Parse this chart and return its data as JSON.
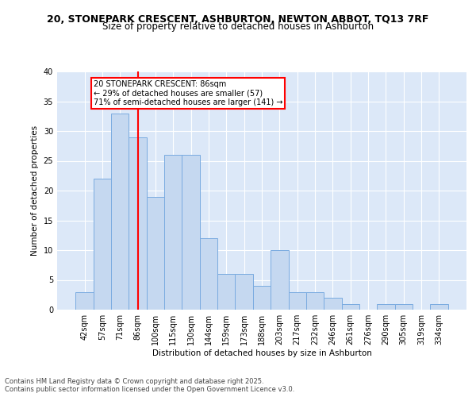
{
  "title_line1": "20, STONEPARK CRESCENT, ASHBURTON, NEWTON ABBOT, TQ13 7RF",
  "title_line2": "Size of property relative to detached houses in Ashburton",
  "xlabel": "Distribution of detached houses by size in Ashburton",
  "ylabel": "Number of detached properties",
  "categories": [
    "42sqm",
    "57sqm",
    "71sqm",
    "86sqm",
    "100sqm",
    "115sqm",
    "130sqm",
    "144sqm",
    "159sqm",
    "173sqm",
    "188sqm",
    "203sqm",
    "217sqm",
    "232sqm",
    "246sqm",
    "261sqm",
    "276sqm",
    "290sqm",
    "305sqm",
    "319sqm",
    "334sqm"
  ],
  "values": [
    3,
    22,
    33,
    29,
    19,
    26,
    26,
    12,
    6,
    6,
    4,
    10,
    3,
    3,
    2,
    1,
    0,
    1,
    1,
    0,
    1
  ],
  "bar_color": "#c5d8f0",
  "bar_edge_color": "#7aabe0",
  "red_line_x": 3,
  "annotation_text": "20 STONEPARK CRESCENT: 86sqm\n← 29% of detached houses are smaller (57)\n71% of semi-detached houses are larger (141) →",
  "annotation_box_color": "white",
  "annotation_box_edge": "red",
  "ylim": [
    0,
    40
  ],
  "yticks": [
    0,
    5,
    10,
    15,
    20,
    25,
    30,
    35,
    40
  ],
  "background_color": "#dce8f8",
  "grid_color": "white",
  "footer_line1": "Contains HM Land Registry data © Crown copyright and database right 2025.",
  "footer_line2": "Contains public sector information licensed under the Open Government Licence v3.0.",
  "title_fontsize": 9,
  "subtitle_fontsize": 8.5,
  "axis_label_fontsize": 7.5,
  "tick_fontsize": 7,
  "annotation_fontsize": 7,
  "footer_fontsize": 6
}
